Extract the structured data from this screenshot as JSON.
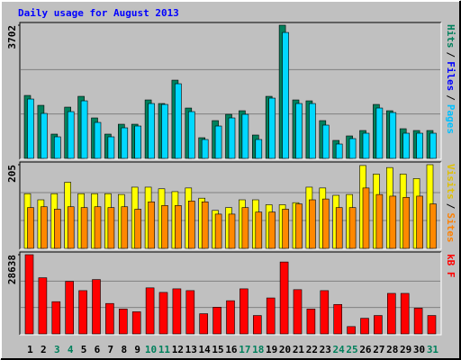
{
  "title": "Daily usage for August 2013",
  "categories": [
    "1",
    "2",
    "3",
    "4",
    "5",
    "6",
    "7",
    "8",
    "9",
    "10",
    "11",
    "12",
    "13",
    "14",
    "15",
    "16",
    "17",
    "18",
    "19",
    "20",
    "21",
    "22",
    "23",
    "24",
    "25",
    "26",
    "27",
    "28",
    "29",
    "30",
    "31"
  ],
  "category_colors": [
    "#000000",
    "#000000",
    "#00805c",
    "#00805c",
    "#000000",
    "#000000",
    "#000000",
    "#000000",
    "#000000",
    "#00805c",
    "#00805c",
    "#000000",
    "#000000",
    "#000000",
    "#000000",
    "#000000",
    "#00805c",
    "#00805c",
    "#000000",
    "#000000",
    "#000000",
    "#000000",
    "#000000",
    "#00805c",
    "#00805c",
    "#000000",
    "#000000",
    "#000000",
    "#000000",
    "#000000",
    "#00805c"
  ],
  "chart_data": [
    {
      "type": "bar",
      "ylim": [
        0,
        3702
      ],
      "yticks": [
        3702
      ],
      "legend_separator": "/",
      "legend": [
        {
          "text": "Hits",
          "color": "#00805c"
        },
        {
          "text": "Files",
          "color": "#0000ff"
        },
        {
          "text": "Pages",
          "color": "#00c0ff"
        }
      ],
      "series": [
        {
          "color": "#00805c",
          "values": [
            1750,
            1475,
            675,
            1425,
            1725,
            1125,
            675,
            950,
            950,
            1625,
            1525,
            2175,
            1400,
            575,
            1050,
            1225,
            1325,
            650,
            1725,
            3702,
            1625,
            1600,
            1050,
            500,
            625,
            775,
            1500,
            1325,
            825,
            775,
            775
          ]
        },
        {
          "color": "#00d8ff",
          "values": [
            1650,
            1250,
            600,
            1300,
            1600,
            1000,
            600,
            850,
            900,
            1525,
            1500,
            2075,
            1300,
            525,
            900,
            1125,
            1225,
            525,
            1675,
            3500,
            1525,
            1525,
            925,
            400,
            550,
            700,
            1400,
            1275,
            700,
            700,
            700
          ]
        }
      ]
    },
    {
      "type": "bar",
      "ylim": [
        0,
        205
      ],
      "yticks": [
        205
      ],
      "legend_separator": "/",
      "legend": [
        {
          "text": "Visits",
          "color": "#e0c000"
        },
        {
          "text": "Sites",
          "color": "#ff8000"
        }
      ],
      "series": [
        {
          "color": "#ffff00",
          "values": [
            134,
            119,
            134,
            162,
            134,
            134,
            134,
            132,
            150,
            150,
            146,
            139,
            148,
            123,
            93,
            100,
            119,
            119,
            107,
            107,
            112,
            150,
            148,
            130,
            132,
            203,
            182,
            198,
            182,
            171,
            205
          ]
        },
        {
          "color": "#ff8800",
          "values": [
            100,
            102,
            96,
            102,
            100,
            102,
            100,
            102,
            96,
            114,
            105,
            105,
            116,
            114,
            84,
            84,
            100,
            89,
            89,
            96,
            109,
            119,
            121,
            100,
            100,
            148,
            132,
            128,
            125,
            128,
            109
          ]
        }
      ]
    },
    {
      "type": "bar",
      "ylim": [
        0,
        28638
      ],
      "yticks": [
        28638
      ],
      "legend_separator": "/",
      "legend": [
        {
          "text": "kB F",
          "color": "#ff0000"
        }
      ],
      "series": [
        {
          "color": "#ff0000",
          "values": [
            28638,
            20300,
            11650,
            19000,
            15650,
            19650,
            11000,
            9000,
            8000,
            16650,
            15000,
            16300,
            15650,
            7300,
            9650,
            12000,
            16300,
            6650,
            13000,
            26000,
            16000,
            9000,
            15650,
            10650,
            2650,
            5650,
            6650,
            14650,
            14650,
            9300,
            6650
          ]
        }
      ]
    }
  ]
}
